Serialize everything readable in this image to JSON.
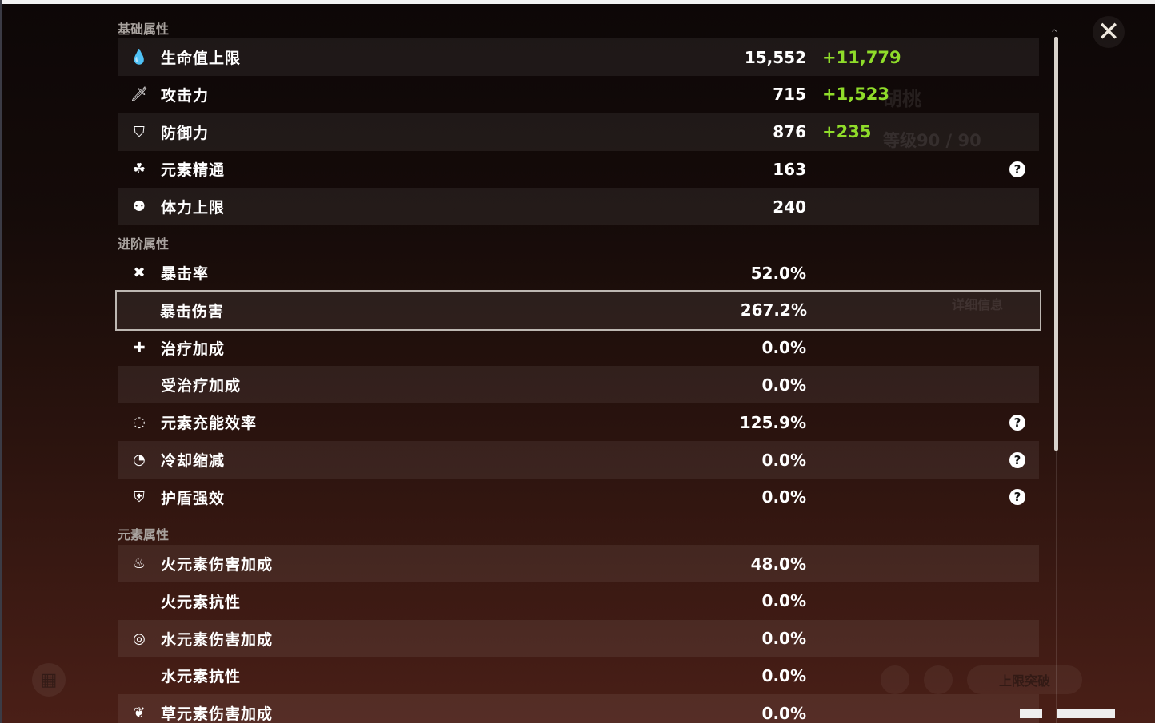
{
  "close_icon": "close-icon",
  "sections": [
    {
      "title": "基础属性",
      "rows": [
        {
          "icon": "hp-drop-icon",
          "glyph": "💧",
          "label": "生命值上限",
          "value": "15,552",
          "bonus": "+11,779",
          "help": false
        },
        {
          "icon": "sword-icon",
          "glyph": "🗡",
          "label": "攻击力",
          "value": "715",
          "bonus": "+1,523",
          "help": false
        },
        {
          "icon": "shield-icon",
          "glyph": "⛉",
          "label": "防御力",
          "value": "876",
          "bonus": "+235",
          "help": false
        },
        {
          "icon": "elemental-mastery-icon",
          "glyph": "☘",
          "label": "元素精通",
          "value": "163",
          "bonus": "",
          "help": true
        },
        {
          "icon": "stamina-icon",
          "glyph": "⚉",
          "label": "体力上限",
          "value": "240",
          "bonus": "",
          "help": false
        }
      ]
    },
    {
      "title": "进阶属性",
      "rows": [
        {
          "icon": "crit-rate-icon",
          "glyph": "✖",
          "label": "暴击率",
          "value": "52.0%",
          "help": false
        },
        {
          "icon": "crit-dmg-icon",
          "glyph": "",
          "label": "暴击伤害",
          "value": "267.2%",
          "help": false,
          "selected": true
        },
        {
          "icon": "healing-icon",
          "glyph": "✚",
          "label": "治疗加成",
          "value": "0.0%",
          "help": false
        },
        {
          "icon": "",
          "glyph": "",
          "label": "受治疗加成",
          "value": "0.0%",
          "help": false
        },
        {
          "icon": "energy-recharge-icon",
          "glyph": "◌",
          "label": "元素充能效率",
          "value": "125.9%",
          "help": true
        },
        {
          "icon": "cooldown-icon",
          "glyph": "◔",
          "label": "冷却缩减",
          "value": "0.0%",
          "help": true
        },
        {
          "icon": "shield-strength-icon",
          "glyph": "⛨",
          "label": "护盾强效",
          "value": "0.0%",
          "help": true
        }
      ]
    },
    {
      "title": "元素属性",
      "rows": [
        {
          "icon": "pyro-icon",
          "glyph": "♨",
          "label": "火元素伤害加成",
          "value": "48.0%",
          "help": false
        },
        {
          "icon": "",
          "glyph": "",
          "label": "火元素抗性",
          "value": "0.0%",
          "help": false
        },
        {
          "icon": "hydro-icon",
          "glyph": "◎",
          "label": "水元素伤害加成",
          "value": "0.0%",
          "help": false
        },
        {
          "icon": "",
          "glyph": "",
          "label": "水元素抗性",
          "value": "0.0%",
          "help": false
        },
        {
          "icon": "dendro-icon",
          "glyph": "❦",
          "label": "草元素伤害加成",
          "value": "0.0%",
          "help": false
        }
      ]
    }
  ],
  "help_glyph": "?",
  "background": {
    "character_name": "胡桃",
    "level": "等级90 / 90",
    "detail_button": "详细信息",
    "ascend_button": "上限突破"
  },
  "colors": {
    "bonus": "#8fdc2a",
    "selected_border": "#bdb7b2"
  }
}
